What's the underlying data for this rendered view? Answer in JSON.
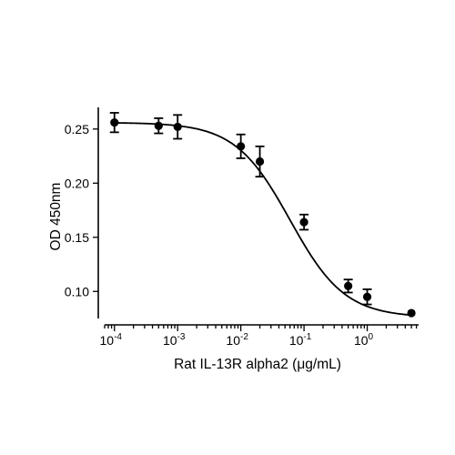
{
  "chart_data": {
    "type": "scatter",
    "xlabel": "Rat IL-13R alpha2 (μg/mL)",
    "ylabel": "OD 450nm",
    "xscale": "log",
    "xlim": [
      7e-05,
      6.5
    ],
    "ylim": [
      0.075,
      0.27
    ],
    "x_ticks": [
      {
        "value": 0.0001,
        "base": "10",
        "exp": "-4"
      },
      {
        "value": 0.001,
        "base": "10",
        "exp": "-3"
      },
      {
        "value": 0.01,
        "base": "10",
        "exp": "-2"
      },
      {
        "value": 0.1,
        "base": "10",
        "exp": "-1"
      },
      {
        "value": 1,
        "base": "10",
        "exp": "0"
      }
    ],
    "y_ticks": [
      {
        "value": 0.1,
        "label": "0.10"
      },
      {
        "value": 0.15,
        "label": "0.15"
      },
      {
        "value": 0.2,
        "label": "0.20"
      },
      {
        "value": 0.25,
        "label": "0.25"
      }
    ],
    "points": [
      {
        "x": 0.0001,
        "y": 0.256,
        "err": 0.009
      },
      {
        "x": 0.0005,
        "y": 0.253,
        "err": 0.007
      },
      {
        "x": 0.001,
        "y": 0.252,
        "err": 0.011
      },
      {
        "x": 0.01,
        "y": 0.234,
        "err": 0.011
      },
      {
        "x": 0.02,
        "y": 0.22,
        "err": 0.014
      },
      {
        "x": 0.1,
        "y": 0.164,
        "err": 0.007
      },
      {
        "x": 0.5,
        "y": 0.105,
        "err": 0.006
      },
      {
        "x": 1.0,
        "y": 0.095,
        "err": 0.007
      },
      {
        "x": 5.0,
        "y": 0.08,
        "err": 0
      }
    ],
    "fit": {
      "model": "4PL",
      "top": 0.256,
      "bottom": 0.076,
      "ec50": 0.06,
      "hill": 1.0
    },
    "grid": false,
    "legend": "none"
  }
}
